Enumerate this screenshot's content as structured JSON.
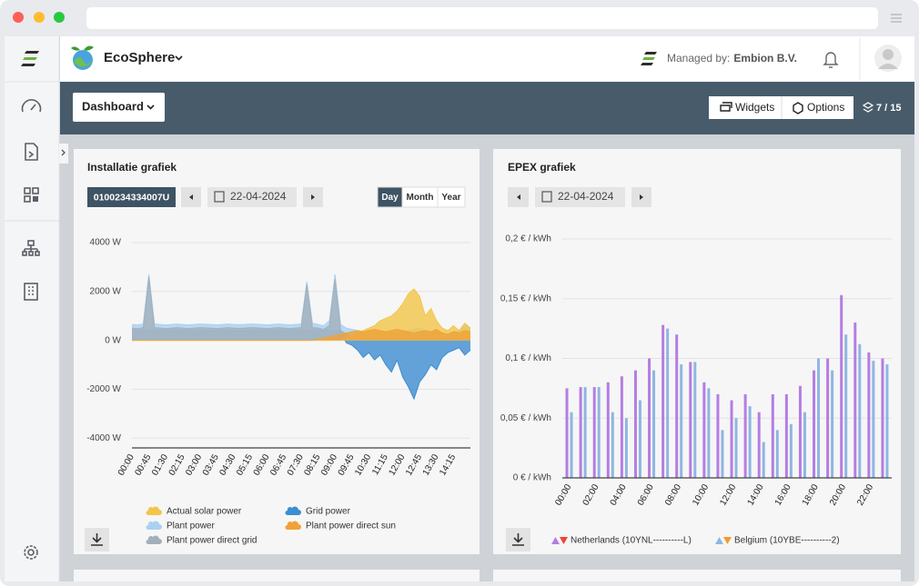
{
  "app": {
    "name": "EcoSphere",
    "managed_label": "Managed by:",
    "managed_by": "Embion B.V."
  },
  "toolbar": {
    "dashboard": "Dashboard",
    "widgets": "Widgets",
    "options": "Options",
    "widget_count": "7 / 15"
  },
  "chart_data": [
    {
      "type": "area",
      "title": "Installatie grafiek",
      "installation": "0100234334007U",
      "date": "22-04-2024",
      "periods": [
        "Day",
        "Month",
        "Year"
      ],
      "active_period": 0,
      "grid": true,
      "categories": [
        "00:00",
        null,
        null,
        "00:45",
        null,
        null,
        "01:30",
        null,
        null,
        "02:15",
        null,
        null,
        "03:00",
        null,
        null,
        "03:45",
        null,
        null,
        "04:30",
        null,
        null,
        "05:15",
        null,
        null,
        "06:00",
        null,
        null,
        "06:45",
        null,
        null,
        "07:30",
        null,
        null,
        "08:15",
        null,
        null,
        "09:00",
        null,
        null,
        "09:45",
        null,
        null,
        "10:30",
        null,
        null,
        "11:15",
        null,
        null,
        "12:00",
        null,
        null,
        "12:45",
        null,
        null,
        "13:30",
        null,
        null,
        "14:15",
        null,
        null,
        null
      ],
      "ylim": [
        -4400,
        4000
      ],
      "yticks": [
        {
          "value": 4000,
          "label": "4000 W"
        },
        {
          "value": 2000,
          "label": "2000 W"
        },
        {
          "value": 0,
          "label": "0 W"
        },
        {
          "value": -2000,
          "label": "-2000 W"
        },
        {
          "value": -4000,
          "label": "-4000 W"
        }
      ],
      "series": [
        {
          "name": "Actual solar power",
          "color": "#f3c64a",
          "values": [
            0,
            0,
            0,
            0,
            0,
            0,
            0,
            0,
            0,
            0,
            0,
            0,
            0,
            0,
            0,
            0,
            0,
            0,
            0,
            0,
            0,
            0,
            0,
            0,
            0,
            0,
            0,
            0,
            0,
            0,
            0,
            0,
            0,
            0,
            0,
            0,
            0,
            0,
            100,
            200,
            300,
            400,
            500,
            600,
            800,
            900,
            1000,
            1200,
            1500,
            1900,
            2100,
            1800,
            1000,
            1300,
            800,
            500,
            400,
            600,
            400,
            700,
            500
          ]
        },
        {
          "name": "Grid power",
          "color": "#3d8dd1",
          "values": [
            400,
            400,
            400,
            400,
            400,
            400,
            400,
            400,
            400,
            400,
            400,
            400,
            400,
            400,
            400,
            400,
            400,
            400,
            400,
            400,
            400,
            400,
            400,
            400,
            400,
            400,
            400,
            400,
            400,
            400,
            400,
            400,
            400,
            400,
            400,
            400,
            400,
            400,
            -100,
            -200,
            -400,
            -700,
            -500,
            -800,
            -600,
            -1000,
            -1300,
            -800,
            -1500,
            -1900,
            -2400,
            -1700,
            -1400,
            -1000,
            -1200,
            -700,
            -500,
            -400,
            -300,
            -600,
            -400
          ]
        },
        {
          "name": "Plant power",
          "color": "#a9d1f1",
          "values": [
            650,
            630,
            670,
            2700,
            670,
            650,
            630,
            650,
            670,
            650,
            630,
            650,
            670,
            660,
            650,
            630,
            650,
            670,
            650,
            640,
            650,
            670,
            660,
            650,
            630,
            650,
            670,
            650,
            630,
            650,
            670,
            2400,
            700,
            650,
            600,
            800,
            2700,
            650,
            500,
            450,
            400,
            350,
            400,
            350,
            300,
            350,
            400,
            300,
            350,
            400,
            450,
            500,
            400,
            350,
            400,
            300,
            250,
            350,
            400,
            600,
            500
          ]
        },
        {
          "name": "Plant power direct sun",
          "color": "#f0a238",
          "values": [
            0,
            0,
            0,
            0,
            0,
            0,
            0,
            0,
            0,
            0,
            0,
            0,
            0,
            0,
            0,
            0,
            0,
            0,
            0,
            0,
            0,
            0,
            0,
            0,
            0,
            0,
            0,
            0,
            0,
            0,
            0,
            0,
            0,
            50,
            100,
            150,
            200,
            250,
            300,
            350,
            400,
            350,
            400,
            450,
            400,
            350,
            400,
            450,
            400,
            350,
            300,
            350,
            400,
            350,
            450,
            300,
            250,
            350,
            300,
            400,
            350
          ]
        },
        {
          "name": "Plant power direct grid",
          "color": "#a3b0bb",
          "values": [
            500,
            480,
            520,
            2600,
            520,
            500,
            480,
            500,
            520,
            500,
            480,
            500,
            520,
            510,
            500,
            480,
            500,
            520,
            500,
            490,
            500,
            520,
            510,
            500,
            480,
            500,
            520,
            500,
            480,
            500,
            520,
            2300,
            520,
            500,
            450,
            600,
            2500,
            400,
            250,
            120,
            50,
            0,
            0,
            0,
            0,
            0,
            0,
            0,
            0,
            0,
            0,
            0,
            0,
            0,
            0,
            0,
            0,
            0,
            0,
            0,
            0
          ]
        }
      ]
    },
    {
      "type": "bar",
      "title": "EPEX grafiek",
      "date": "22-04-2024",
      "grid": true,
      "categories": [
        "00:00",
        null,
        "02:00",
        null,
        "04:00",
        null,
        "06:00",
        null,
        "08:00",
        null,
        "10:00",
        null,
        "12:00",
        null,
        "14:00",
        null,
        "16:00",
        null,
        "18:00",
        null,
        "20:00",
        null,
        "22:00",
        null
      ],
      "ylim": [
        0,
        0.2
      ],
      "yticks": [
        {
          "value": 0,
          "label": "0 € / kWh"
        },
        {
          "value": 0.05,
          "label": "0,05 € / kWh"
        },
        {
          "value": 0.1,
          "label": "0,1 € / kWh"
        },
        {
          "value": 0.15,
          "label": "0,15 € / kWh"
        },
        {
          "value": 0.2,
          "label": "0,2 € / kWh"
        }
      ],
      "series": [
        {
          "name": "Netherlands (10YNL----------L)",
          "color": "#b57de2",
          "alt_color": "#ef4438",
          "values": [
            0.075,
            0.076,
            0.076,
            0.08,
            0.085,
            0.09,
            0.1,
            0.128,
            0.12,
            0.097,
            0.08,
            0.07,
            0.065,
            0.07,
            0.055,
            0.07,
            0.07,
            0.077,
            0.09,
            0.1,
            0.153,
            0.13,
            0.105,
            0.1
          ]
        },
        {
          "name": "Belgium (10YBE----------2)",
          "color": "#8fb6e2",
          "alt_color": "#f39a2e",
          "values": [
            0.055,
            0.076,
            0.076,
            0.055,
            0.05,
            0.065,
            0.09,
            0.125,
            0.095,
            0.097,
            0.075,
            0.04,
            0.05,
            0.06,
            0.03,
            0.04,
            0.045,
            0.055,
            0.1,
            0.09,
            0.12,
            0.112,
            0.098,
            0.095
          ]
        }
      ]
    }
  ]
}
